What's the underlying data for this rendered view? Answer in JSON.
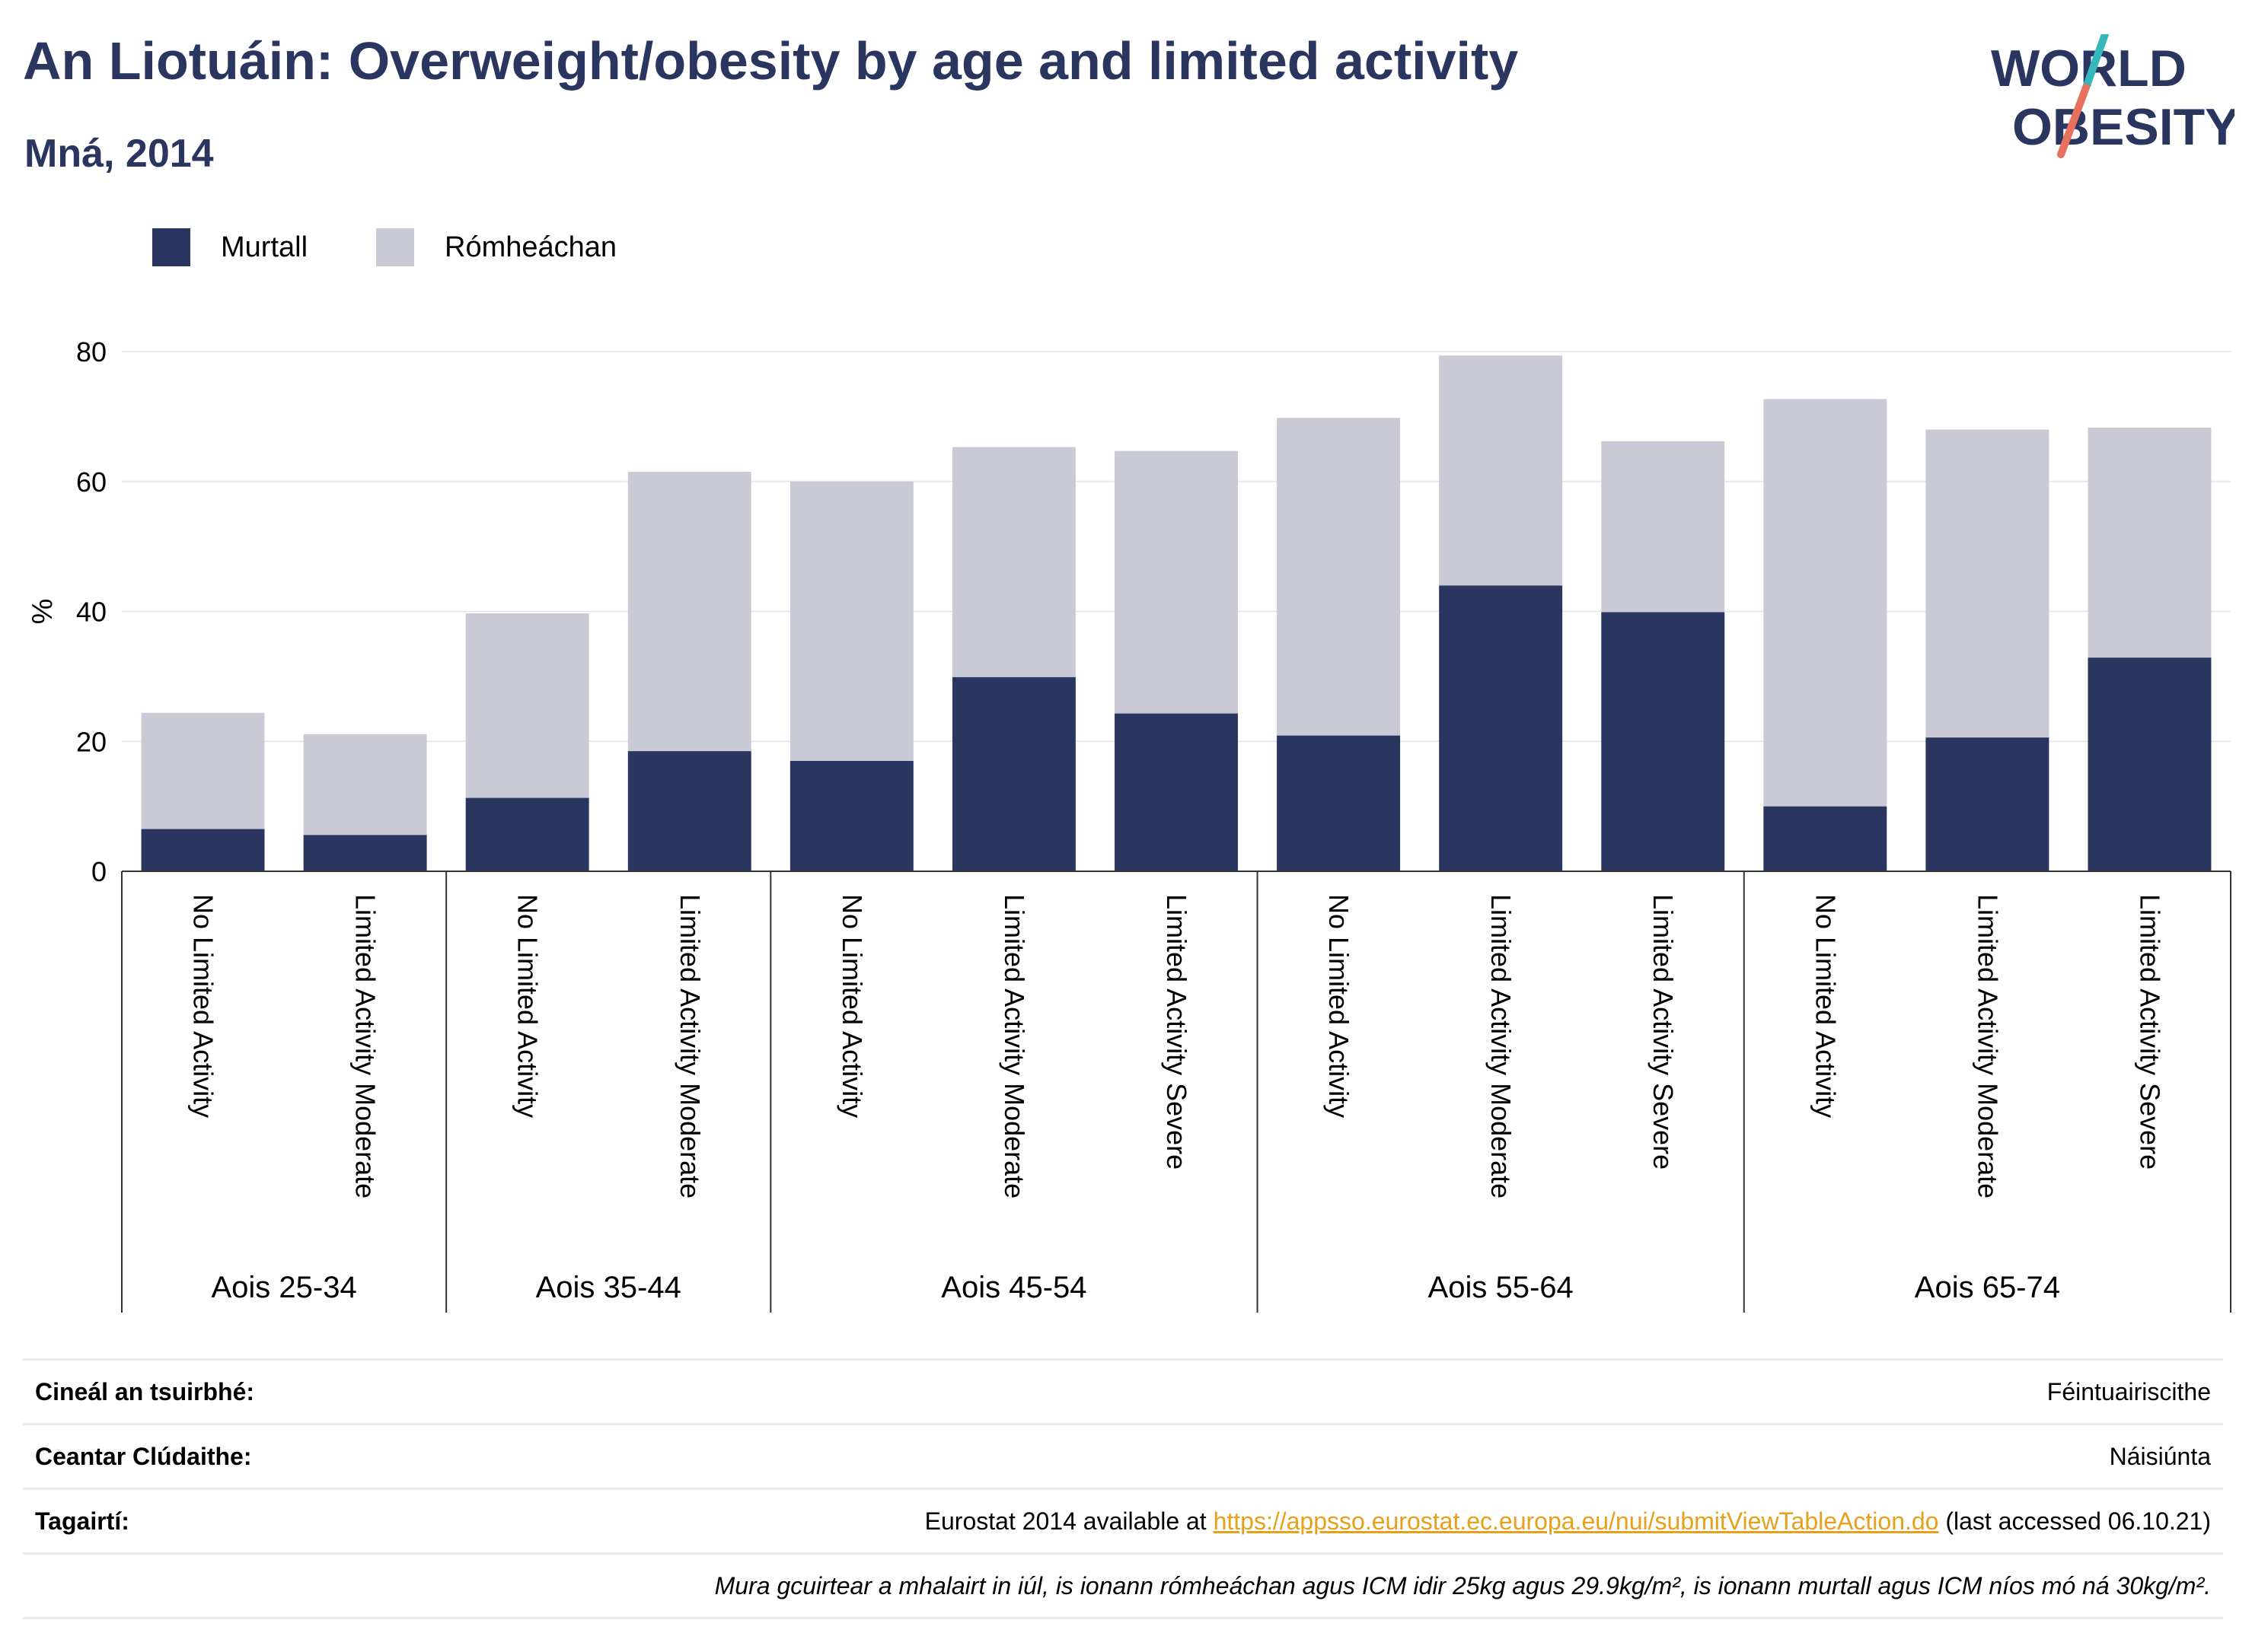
{
  "header": {
    "title": "An Liotuáin: Overweight/obesity by age and limited activity",
    "subtitle": "Mná, 2014"
  },
  "logo": {
    "line1": "WORLD",
    "line2": "OBESITY"
  },
  "legend": [
    {
      "label": "Murtall",
      "color": "#2a3560"
    },
    {
      "label": "Rómheáchan",
      "color": "#c9cad6"
    }
  ],
  "chart_data": {
    "type": "bar",
    "stacked": true,
    "ylabel": "%",
    "ylim": [
      0,
      82
    ],
    "yticks": [
      0,
      20,
      40,
      60,
      80
    ],
    "grid": true,
    "legend_position": "top-left",
    "groups": [
      {
        "label": "Aois 25-34",
        "count": 2
      },
      {
        "label": "Aois 35-44",
        "count": 2
      },
      {
        "label": "Aois 45-54",
        "count": 3
      },
      {
        "label": "Aois 55-64",
        "count": 3
      },
      {
        "label": "Aois 65-74",
        "count": 3
      }
    ],
    "categories": [
      "No Limited Activity",
      "Limited Activity Moderate",
      "No Limited Activity",
      "Limited Activity Moderate",
      "No Limited Activity",
      "Limited Activity Moderate",
      "Limited Activity Severe",
      "No Limited Activity",
      "Limited Activity Moderate",
      "Limited Activity Severe",
      "No Limited Activity",
      "Limited Activity Moderate",
      "Limited Activity Severe"
    ],
    "series": [
      {
        "name": "Murtall",
        "color": "#2a3560",
        "values": [
          6.5,
          5.6,
          11.3,
          18.5,
          17.0,
          29.9,
          24.3,
          20.9,
          44.0,
          39.9,
          10.0,
          20.6,
          32.9
        ]
      },
      {
        "name": "Rómheáchan",
        "color": "#c9cad6",
        "values": [
          17.9,
          15.5,
          28.4,
          43.0,
          43.0,
          35.4,
          40.4,
          48.9,
          35.4,
          26.3,
          62.7,
          47.4,
          35.4
        ]
      }
    ]
  },
  "meta": {
    "survey_label": "Cineál an tsuirbhé:",
    "survey_value": "Féintuairiscithe",
    "coverage_label": "Ceantar Clúdaithe:",
    "coverage_value": "Náisiúnta",
    "refs_label": "Tagairtí:",
    "refs_prefix": "Eurostat 2014 available at ",
    "refs_link": "https://appsso.eurostat.ec.europa.eu/nui/submitViewTableAction.do",
    "refs_suffix": " (last accessed 06.10.21)",
    "note": "Mura gcuirtear a mhalairt in iúl, is ionann rómheáchan agus ICM idir 25kg agus 29.9kg/m², is ionann murtall agus ICM níos mó ná 30kg/m²."
  }
}
